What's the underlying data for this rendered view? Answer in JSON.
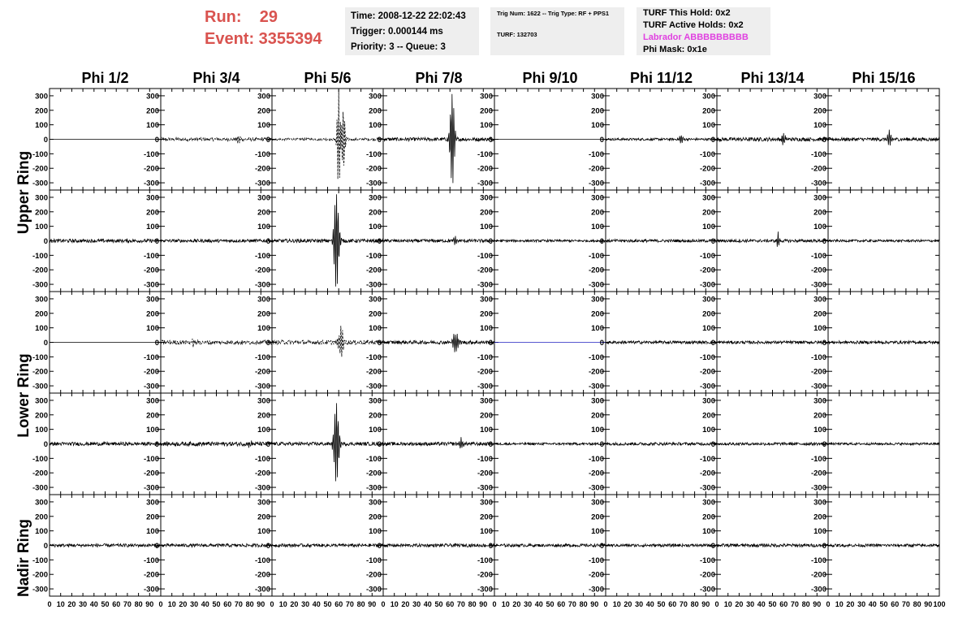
{
  "run_info": {
    "run": "Run:    29",
    "event": "Event: 3355394"
  },
  "time_box": {
    "time": "Time: 2008-12-22 22:02:43",
    "trigger": "Trigger: 0.000144 ms",
    "priority": "Priority: 3 -- Queue: 3"
  },
  "trig_box": {
    "trig": "Trig Num: 1622 -- Trig Type: RF + PPS1",
    "turf": "TURF: 132703"
  },
  "turf_box": {
    "this_hold": "TURF This Hold: 0x2",
    "active_holds": "TURF Active Holds: 0x2",
    "labrador": "Labrador ABBBBBBBBB",
    "phi_mask": "Phi Mask: 0x1e"
  },
  "colors": {
    "run_text": "#d9534f",
    "labrador": "#e040e0",
    "trace": "#000000",
    "flat_blue": "#2020c0",
    "info_bg": "#eeeeee"
  },
  "column_headers": [
    "Phi 1/2",
    "Phi 3/4",
    "Phi 5/6",
    "Phi 7/8",
    "Phi 9/10",
    "Phi 11/12",
    "Phi 13/14",
    "Phi 15/16"
  ],
  "row_labels": {
    "upper": "Upper Ring",
    "lower": "Lower Ring",
    "nadir": "Nadir Ring"
  },
  "chart_data": {
    "type": "line",
    "grid": false,
    "xlim": [
      0,
      100
    ],
    "ylim": [
      -350,
      350
    ],
    "y_tick_labels": [
      "300",
      "200",
      "100",
      "0",
      "-100",
      "-200",
      "-300"
    ],
    "x_tick_labels": [
      "0",
      "10",
      "20",
      "30",
      "40",
      "50",
      "60",
      "70",
      "80",
      "90",
      "100"
    ],
    "panel_rows": 5,
    "panel_columns": 8,
    "traces": [
      [
        {
          "style": "flat"
        },
        {
          "style": "dashed",
          "noise": 12,
          "pulses": [
            {
              "x": 70,
              "a": 25
            }
          ]
        },
        {
          "style": "dashed",
          "noise": 8,
          "pulses": [
            {
              "x": 60,
              "a": 350,
              "w": 1.6
            },
            {
              "x": 64,
              "a": 240,
              "w": 1.8
            }
          ]
        },
        {
          "style": "solid",
          "noise": 12,
          "pulses": [
            {
              "x": 62,
              "a": 330,
              "w": 2.2
            }
          ]
        },
        {
          "style": "flat"
        },
        {
          "style": "solid",
          "noise": 8,
          "pulses": [
            {
              "x": 68,
              "a": 35
            }
          ]
        },
        {
          "style": "solid",
          "noise": 13,
          "pulses": [
            {
              "x": 60,
              "a": 40
            }
          ]
        },
        {
          "style": "solid",
          "noise": 12,
          "pulses": [
            {
              "x": 55,
              "a": 55
            }
          ]
        }
      ],
      [
        {
          "style": "solid",
          "noise": 12,
          "pulses": []
        },
        {
          "style": "solid",
          "noise": 11,
          "pulses": []
        },
        {
          "style": "solid",
          "noise": 12,
          "pulses": [
            {
              "x": 58,
              "a": 350,
              "w": 2.5
            }
          ]
        },
        {
          "style": "solid",
          "noise": 11,
          "pulses": [
            {
              "x": 65,
              "a": 35
            }
          ]
        },
        {
          "style": "solid",
          "noise": 8,
          "pulses": []
        },
        {
          "style": "solid",
          "noise": 10,
          "pulses": []
        },
        {
          "style": "solid",
          "noise": 10,
          "pulses": [
            {
              "x": 55,
              "a": 55,
              "w": 1.4
            }
          ]
        },
        {
          "style": "solid",
          "noise": 8,
          "pulses": []
        }
      ],
      [
        {
          "style": "flat"
        },
        {
          "style": "dashed",
          "noise": 14,
          "pulses": [
            {
              "x": 30,
              "a": 25
            }
          ]
        },
        {
          "style": "dashed",
          "noise": 15,
          "pulses": [
            {
              "x": 62,
              "a": 110,
              "w": 2.4
            }
          ]
        },
        {
          "style": "solid",
          "noise": 12,
          "pulses": [
            {
              "x": 65,
              "a": 65,
              "w": 3
            }
          ]
        },
        {
          "style": "flat",
          "color": "#2020c0"
        },
        {
          "style": "solid",
          "noise": 10,
          "pulses": []
        },
        {
          "style": "solid",
          "noise": 10,
          "pulses": []
        },
        {
          "style": "solid",
          "noise": 10,
          "pulses": []
        }
      ],
      [
        {
          "style": "solid",
          "noise": 12,
          "pulses": []
        },
        {
          "style": "solid",
          "noise": 14,
          "pulses": [
            {
              "x": 80,
              "a": 20
            }
          ]
        },
        {
          "style": "solid",
          "noise": 12,
          "pulses": [
            {
              "x": 58,
              "a": 290,
              "w": 2.5
            }
          ]
        },
        {
          "style": "solid",
          "noise": 12,
          "pulses": [
            {
              "x": 70,
              "a": 35
            }
          ]
        },
        {
          "style": "solid",
          "noise": 8,
          "pulses": []
        },
        {
          "style": "solid",
          "noise": 10,
          "pulses": []
        },
        {
          "style": "solid",
          "noise": 10,
          "pulses": []
        },
        {
          "style": "solid",
          "noise": 8,
          "pulses": []
        }
      ],
      [
        {
          "style": "solid",
          "noise": 11,
          "pulses": []
        },
        {
          "style": "solid",
          "noise": 11,
          "pulses": []
        },
        {
          "style": "solid",
          "noise": 11,
          "pulses": []
        },
        {
          "style": "solid",
          "noise": 11,
          "pulses": []
        },
        {
          "style": "solid",
          "noise": 10,
          "pulses": []
        },
        {
          "style": "solid",
          "noise": 10,
          "pulses": []
        },
        {
          "style": "solid",
          "noise": 11,
          "pulses": []
        },
        {
          "style": "solid",
          "noise": 10,
          "pulses": []
        }
      ]
    ]
  }
}
